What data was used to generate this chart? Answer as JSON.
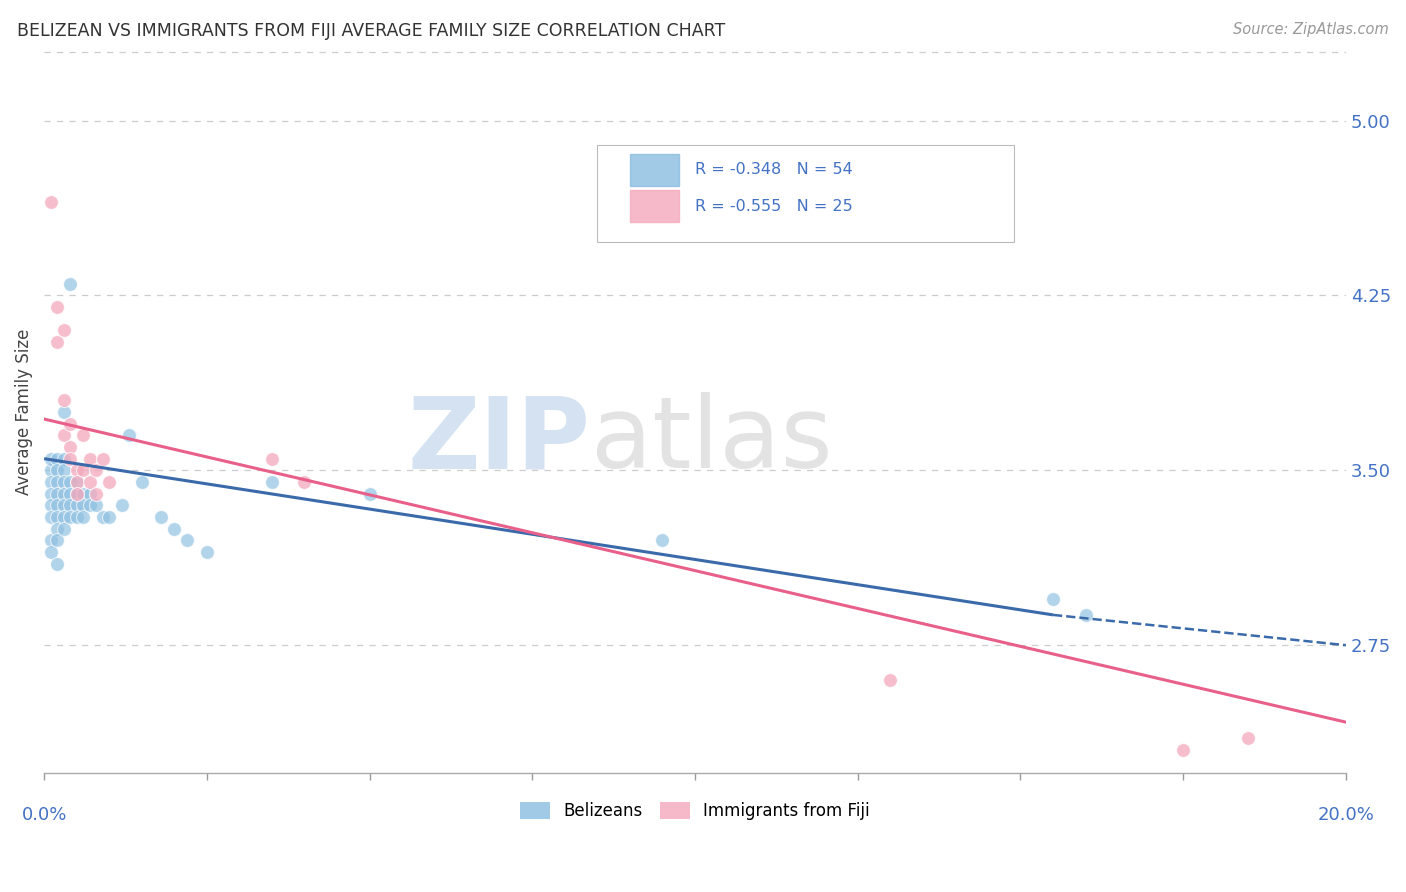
{
  "title": "BELIZEAN VS IMMIGRANTS FROM FIJI AVERAGE FAMILY SIZE CORRELATION CHART",
  "source": "Source: ZipAtlas.com",
  "ylabel": "Average Family Size",
  "right_yticks": [
    2.75,
    3.5,
    4.25,
    5.0
  ],
  "xlim": [
    0.0,
    0.2
  ],
  "ylim": [
    2.2,
    5.3
  ],
  "belizean_points": [
    [
      0.001,
      3.5
    ],
    [
      0.001,
      3.55
    ],
    [
      0.001,
      3.45
    ],
    [
      0.001,
      3.4
    ],
    [
      0.001,
      3.35
    ],
    [
      0.001,
      3.3
    ],
    [
      0.001,
      3.2
    ],
    [
      0.001,
      3.15
    ],
    [
      0.002,
      3.55
    ],
    [
      0.002,
      3.5
    ],
    [
      0.002,
      3.45
    ],
    [
      0.002,
      3.4
    ],
    [
      0.002,
      3.35
    ],
    [
      0.002,
      3.3
    ],
    [
      0.002,
      3.25
    ],
    [
      0.002,
      3.2
    ],
    [
      0.002,
      3.1
    ],
    [
      0.003,
      3.55
    ],
    [
      0.003,
      3.5
    ],
    [
      0.003,
      3.45
    ],
    [
      0.003,
      3.4
    ],
    [
      0.003,
      3.35
    ],
    [
      0.003,
      3.3
    ],
    [
      0.003,
      3.25
    ],
    [
      0.003,
      3.75
    ],
    [
      0.004,
      4.3
    ],
    [
      0.004,
      3.45
    ],
    [
      0.004,
      3.4
    ],
    [
      0.004,
      3.35
    ],
    [
      0.004,
      3.3
    ],
    [
      0.005,
      3.45
    ],
    [
      0.005,
      3.4
    ],
    [
      0.005,
      3.35
    ],
    [
      0.005,
      3.3
    ],
    [
      0.006,
      3.4
    ],
    [
      0.006,
      3.35
    ],
    [
      0.006,
      3.3
    ],
    [
      0.007,
      3.4
    ],
    [
      0.007,
      3.35
    ],
    [
      0.008,
      3.35
    ],
    [
      0.009,
      3.3
    ],
    [
      0.01,
      3.3
    ],
    [
      0.012,
      3.35
    ],
    [
      0.013,
      3.65
    ],
    [
      0.015,
      3.45
    ],
    [
      0.018,
      3.3
    ],
    [
      0.02,
      3.25
    ],
    [
      0.022,
      3.2
    ],
    [
      0.025,
      3.15
    ],
    [
      0.035,
      3.45
    ],
    [
      0.05,
      3.4
    ],
    [
      0.095,
      3.2
    ],
    [
      0.155,
      2.95
    ],
    [
      0.16,
      2.88
    ]
  ],
  "fiji_points": [
    [
      0.001,
      4.65
    ],
    [
      0.002,
      4.2
    ],
    [
      0.002,
      4.05
    ],
    [
      0.003,
      4.1
    ],
    [
      0.003,
      3.8
    ],
    [
      0.003,
      3.65
    ],
    [
      0.004,
      3.7
    ],
    [
      0.004,
      3.6
    ],
    [
      0.004,
      3.55
    ],
    [
      0.005,
      3.5
    ],
    [
      0.005,
      3.45
    ],
    [
      0.005,
      3.4
    ],
    [
      0.006,
      3.65
    ],
    [
      0.006,
      3.5
    ],
    [
      0.007,
      3.55
    ],
    [
      0.007,
      3.45
    ],
    [
      0.008,
      3.5
    ],
    [
      0.008,
      3.4
    ],
    [
      0.009,
      3.55
    ],
    [
      0.01,
      3.45
    ],
    [
      0.035,
      3.55
    ],
    [
      0.04,
      3.45
    ],
    [
      0.13,
      2.6
    ],
    [
      0.175,
      2.3
    ],
    [
      0.185,
      2.35
    ]
  ],
  "belizean_color": "#89bde0",
  "fiji_color": "#f4a8bc",
  "belizean_trend_color": "#3b6aaa",
  "fiji_trend_color": "#e8608a",
  "background_color": "#ffffff",
  "grid_color": "#cccccc"
}
